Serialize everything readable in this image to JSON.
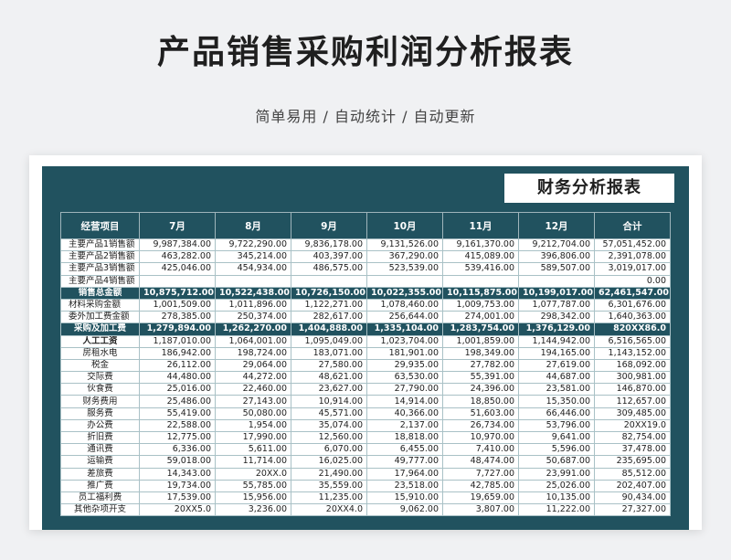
{
  "title": "产品销售采购利润分析报表",
  "subtitle": "简单易用 / 自动统计 / 自动更新",
  "report_title": "财务分析报表",
  "colors": {
    "header": "#21525f",
    "band": "#21525f",
    "background": "#f0f1f3"
  },
  "table": {
    "headers": [
      "经营项目",
      "7月",
      "8月",
      "9月",
      "10月",
      "11月",
      "12月",
      "合计"
    ],
    "rows": [
      {
        "style": "normal",
        "align": "left",
        "cells": [
          "主要产品1销售额",
          "9,987,384.00",
          "9,722,290.00",
          "9,836,178.00",
          "9,131,526.00",
          "9,161,370.00",
          "9,212,704.00",
          "57,051,452.00"
        ]
      },
      {
        "style": "normal",
        "align": "left",
        "cells": [
          "主要产品2销售额",
          "463,282.00",
          "345,214.00",
          "403,397.00",
          "367,290.00",
          "415,089.00",
          "396,806.00",
          "2,391,078.00"
        ]
      },
      {
        "style": "normal",
        "align": "left",
        "cells": [
          "主要产品3销售额",
          "425,046.00",
          "454,934.00",
          "486,575.00",
          "523,539.00",
          "539,416.00",
          "589,507.00",
          "3,019,017.00"
        ]
      },
      {
        "style": "normal",
        "align": "left",
        "cells": [
          "主要产品4销售额",
          "",
          "",
          "",
          "",
          "",
          "",
          "0.00"
        ]
      },
      {
        "style": "dark",
        "align": "center",
        "cells": [
          "销售总金额",
          "10,875,712.00",
          "10,522,438.00",
          "10,726,150.00",
          "10,022,355.00",
          "10,115,875.00",
          "10,199,017.00",
          "62,461,547.00"
        ]
      },
      {
        "style": "normal",
        "align": "left",
        "cells": [
          "材料采购金额",
          "1,001,509.00",
          "1,011,896.00",
          "1,122,271.00",
          "1,078,460.00",
          "1,009,753.00",
          "1,077,787.00",
          "6,301,676.00"
        ]
      },
      {
        "style": "normal",
        "align": "left",
        "cells": [
          "委外加工费金额",
          "278,385.00",
          "250,374.00",
          "282,617.00",
          "256,644.00",
          "274,001.00",
          "298,342.00",
          "1,640,363.00"
        ]
      },
      {
        "style": "dark",
        "align": "center",
        "cells": [
          "采购及加工费",
          "1,279,894.00",
          "1,262,270.00",
          "1,404,888.00",
          "1,335,104.00",
          "1,283,754.00",
          "1,376,129.00",
          "820XX86.0"
        ]
      },
      {
        "style": "bold",
        "align": "center",
        "cells": [
          "人工工资",
          "1,187,010.00",
          "1,064,001.00",
          "1,095,049.00",
          "1,023,704.00",
          "1,001,859.00",
          "1,144,942.00",
          "6,516,565.00"
        ]
      },
      {
        "style": "normal",
        "align": "center",
        "cells": [
          "房租水电",
          "186,942.00",
          "198,724.00",
          "183,071.00",
          "181,901.00",
          "198,349.00",
          "194,165.00",
          "1,143,152.00"
        ]
      },
      {
        "style": "normal",
        "align": "center",
        "cells": [
          "税金",
          "26,112.00",
          "29,064.00",
          "27,580.00",
          "29,935.00",
          "27,782.00",
          "27,619.00",
          "168,092.00"
        ]
      },
      {
        "style": "normal",
        "align": "center",
        "cells": [
          "交际费",
          "44,480.00",
          "44,272.00",
          "48,621.00",
          "63,530.00",
          "55,391.00",
          "44,687.00",
          "300,981.00"
        ]
      },
      {
        "style": "normal",
        "align": "center",
        "cells": [
          "伙食费",
          "25,016.00",
          "22,460.00",
          "23,627.00",
          "27,790.00",
          "24,396.00",
          "23,581.00",
          "146,870.00"
        ]
      },
      {
        "style": "normal",
        "align": "center",
        "cells": [
          "财务费用",
          "25,486.00",
          "27,143.00",
          "10,914.00",
          "14,914.00",
          "18,850.00",
          "15,350.00",
          "112,657.00"
        ]
      },
      {
        "style": "normal",
        "align": "center",
        "cells": [
          "服务费",
          "55,419.00",
          "50,080.00",
          "45,571.00",
          "40,366.00",
          "51,603.00",
          "66,446.00",
          "309,485.00"
        ]
      },
      {
        "style": "normal",
        "align": "center",
        "cells": [
          "办公费",
          "22,588.00",
          "1,954.00",
          "35,074.00",
          "2,137.00",
          "26,734.00",
          "53,796.00",
          "20XX19.0"
        ]
      },
      {
        "style": "normal",
        "align": "center",
        "cells": [
          "折旧费",
          "12,775.00",
          "17,990.00",
          "12,560.00",
          "18,818.00",
          "10,970.00",
          "9,641.00",
          "82,754.00"
        ]
      },
      {
        "style": "normal",
        "align": "center",
        "cells": [
          "通讯费",
          "6,336.00",
          "5,611.00",
          "6,070.00",
          "6,455.00",
          "7,410.00",
          "5,596.00",
          "37,478.00"
        ]
      },
      {
        "style": "normal",
        "align": "center",
        "cells": [
          "运输费",
          "59,018.00",
          "11,714.00",
          "16,025.00",
          "49,777.00",
          "48,474.00",
          "50,687.00",
          "235,695.00"
        ]
      },
      {
        "style": "normal",
        "align": "center",
        "cells": [
          "差旅费",
          "14,343.00",
          "20XX.0",
          "21,490.00",
          "17,964.00",
          "7,727.00",
          "23,991.00",
          "85,512.00"
        ]
      },
      {
        "style": "normal",
        "align": "center",
        "cells": [
          "推广费",
          "19,734.00",
          "55,785.00",
          "35,559.00",
          "23,518.00",
          "42,785.00",
          "25,026.00",
          "202,407.00"
        ]
      },
      {
        "style": "normal",
        "align": "center",
        "cells": [
          "员工福利费",
          "17,539.00",
          "15,956.00",
          "11,235.00",
          "15,910.00",
          "19,659.00",
          "10,135.00",
          "90,434.00"
        ]
      },
      {
        "style": "normal",
        "align": "center",
        "cells": [
          "其他杂项开支",
          "20XX5.0",
          "3,236.00",
          "20XX4.0",
          "9,062.00",
          "3,807.00",
          "11,222.00",
          "27,327.00"
        ]
      }
    ]
  }
}
